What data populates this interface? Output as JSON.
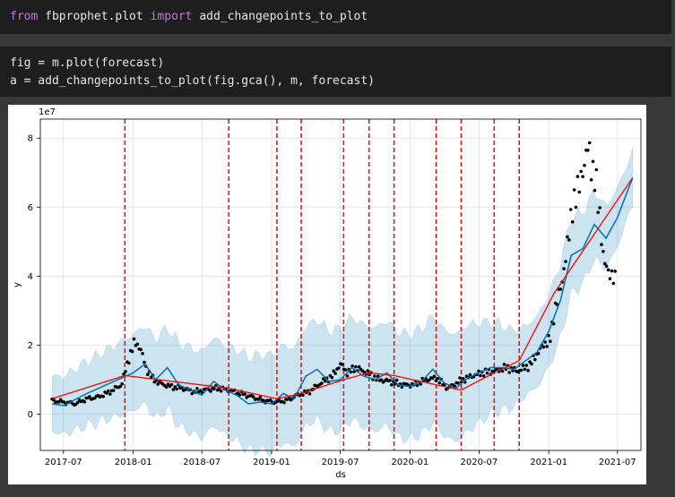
{
  "cells": [
    {
      "kw_from": "from",
      "module": " fbprophet.plot ",
      "kw_import": "import",
      "name": " add_changepoints_to_plot"
    },
    {
      "line1": "fig = m.plot(forecast)",
      "line2": "a = add_changepoints_to_plot(fig.gca(), m, forecast)"
    }
  ],
  "chart_data": {
    "type": "line",
    "title": "",
    "xlabel": "ds",
    "ylabel": "y",
    "y_offset_label": "1e7",
    "xlim": [
      "2017-05-01",
      "2021-09-01"
    ],
    "ylim": [
      -1.05,
      8.55
    ],
    "x_ticks": [
      "2017-07",
      "2018-01",
      "2018-07",
      "2019-01",
      "2019-07",
      "2020-01",
      "2020-07",
      "2021-01",
      "2021-07"
    ],
    "x_tick_positions": [
      "2017-07-01",
      "2018-01-01",
      "2018-07-01",
      "2019-01-01",
      "2019-07-01",
      "2020-01-01",
      "2020-07-01",
      "2021-01-01",
      "2021-07-01"
    ],
    "y_ticks": [
      0,
      2,
      4,
      6,
      8
    ],
    "colors": {
      "actual": "#000000",
      "forecast": "#0072B2",
      "interval": "#0072B2",
      "trend": "#ff0000",
      "changepoint": "#ff0000"
    },
    "changepoints": [
      "2017-12-10",
      "2018-09-10",
      "2019-01-15",
      "2019-03-20",
      "2019-07-10",
      "2019-09-15",
      "2019-11-20",
      "2020-03-10",
      "2020-05-15",
      "2020-08-10",
      "2020-10-15"
    ],
    "trend": [
      {
        "x": "2017-06-01",
        "y": 0.45
      },
      {
        "x": "2017-12-10",
        "y": 1.12
      },
      {
        "x": "2018-09-10",
        "y": 0.75
      },
      {
        "x": "2019-01-15",
        "y": 0.45
      },
      {
        "x": "2019-03-20",
        "y": 0.6
      },
      {
        "x": "2019-07-10",
        "y": 1.0
      },
      {
        "x": "2019-09-15",
        "y": 1.2
      },
      {
        "x": "2019-11-20",
        "y": 1.12
      },
      {
        "x": "2020-03-10",
        "y": 0.85
      },
      {
        "x": "2020-05-15",
        "y": 0.7
      },
      {
        "x": "2020-08-10",
        "y": 1.2
      },
      {
        "x": "2020-10-15",
        "y": 1.55
      },
      {
        "x": "2021-01-15",
        "y": 3.5
      },
      {
        "x": "2021-08-10",
        "y": 6.85
      }
    ],
    "forecast": [
      {
        "x": "2017-06-01",
        "y": 0.3
      },
      {
        "x": "2017-07-01",
        "y": 0.25
      },
      {
        "x": "2017-09-01",
        "y": 0.6
      },
      {
        "x": "2017-11-01",
        "y": 0.9
      },
      {
        "x": "2018-01-01",
        "y": 1.2
      },
      {
        "x": "2018-02-01",
        "y": 1.45
      },
      {
        "x": "2018-03-01",
        "y": 1.0
      },
      {
        "x": "2018-04-01",
        "y": 1.35
      },
      {
        "x": "2018-05-01",
        "y": 0.85
      },
      {
        "x": "2018-06-01",
        "y": 0.7
      },
      {
        "x": "2018-07-01",
        "y": 0.55
      },
      {
        "x": "2018-08-01",
        "y": 0.95
      },
      {
        "x": "2018-09-01",
        "y": 0.7
      },
      {
        "x": "2018-10-01",
        "y": 0.55
      },
      {
        "x": "2018-11-01",
        "y": 0.3
      },
      {
        "x": "2018-12-01",
        "y": 0.35
      },
      {
        "x": "2019-01-01",
        "y": 0.3
      },
      {
        "x": "2019-02-01",
        "y": 0.6
      },
      {
        "x": "2019-03-01",
        "y": 0.45
      },
      {
        "x": "2019-04-01",
        "y": 1.1
      },
      {
        "x": "2019-05-01",
        "y": 1.3
      },
      {
        "x": "2019-06-01",
        "y": 0.95
      },
      {
        "x": "2019-07-01",
        "y": 1.0
      },
      {
        "x": "2019-08-01",
        "y": 1.35
      },
      {
        "x": "2019-09-01",
        "y": 1.1
      },
      {
        "x": "2019-10-01",
        "y": 1.0
      },
      {
        "x": "2019-11-01",
        "y": 1.2
      },
      {
        "x": "2019-12-01",
        "y": 0.85
      },
      {
        "x": "2020-01-01",
        "y": 0.8
      },
      {
        "x": "2020-02-01",
        "y": 0.95
      },
      {
        "x": "2020-03-01",
        "y": 1.3
      },
      {
        "x": "2020-04-01",
        "y": 0.9
      },
      {
        "x": "2020-05-01",
        "y": 0.75
      },
      {
        "x": "2020-06-01",
        "y": 1.05
      },
      {
        "x": "2020-07-01",
        "y": 1.2
      },
      {
        "x": "2020-08-01",
        "y": 1.35
      },
      {
        "x": "2020-09-01",
        "y": 1.35
      },
      {
        "x": "2020-10-01",
        "y": 1.3
      },
      {
        "x": "2020-11-01",
        "y": 1.55
      },
      {
        "x": "2020-12-01",
        "y": 1.8
      },
      {
        "x": "2021-01-01",
        "y": 2.4
      },
      {
        "x": "2021-02-01",
        "y": 3.3
      },
      {
        "x": "2021-03-01",
        "y": 4.6
      },
      {
        "x": "2021-04-01",
        "y": 4.8
      },
      {
        "x": "2021-05-01",
        "y": 5.5
      },
      {
        "x": "2021-06-01",
        "y": 5.1
      },
      {
        "x": "2021-07-01",
        "y": 5.7
      },
      {
        "x": "2021-08-10",
        "y": 6.85
      }
    ],
    "interval_halfwidth": [
      {
        "x": "2017-06-01",
        "y": 0.8
      },
      {
        "x": "2018-01-01",
        "y": 1.1
      },
      {
        "x": "2019-01-01",
        "y": 1.4
      },
      {
        "x": "2019-10-01",
        "y": 1.5
      },
      {
        "x": "2020-06-01",
        "y": 1.55
      },
      {
        "x": "2020-11-01",
        "y": 1.0
      },
      {
        "x": "2021-03-01",
        "y": 1.1
      },
      {
        "x": "2021-08-10",
        "y": 0.75
      }
    ],
    "actual_anchors": [
      {
        "x": "2017-06-01",
        "y": 0.4
      },
      {
        "x": "2017-07-01",
        "y": 0.35
      },
      {
        "x": "2017-08-01",
        "y": 0.3
      },
      {
        "x": "2017-09-01",
        "y": 0.45
      },
      {
        "x": "2017-10-01",
        "y": 0.5
      },
      {
        "x": "2017-11-01",
        "y": 0.65
      },
      {
        "x": "2017-12-01",
        "y": 0.85
      },
      {
        "x": "2017-12-20",
        "y": 1.6
      },
      {
        "x": "2018-01-05",
        "y": 2.1
      },
      {
        "x": "2018-01-20",
        "y": 1.9
      },
      {
        "x": "2018-02-05",
        "y": 1.3
      },
      {
        "x": "2018-02-20",
        "y": 1.05
      },
      {
        "x": "2018-03-10",
        "y": 0.9
      },
      {
        "x": "2018-04-10",
        "y": 0.8
      },
      {
        "x": "2018-05-10",
        "y": 0.75
      },
      {
        "x": "2018-06-10",
        "y": 0.65
      },
      {
        "x": "2018-07-10",
        "y": 0.7
      },
      {
        "x": "2018-08-10",
        "y": 0.75
      },
      {
        "x": "2018-09-10",
        "y": 0.7
      },
      {
        "x": "2018-10-10",
        "y": 0.6
      },
      {
        "x": "2018-11-10",
        "y": 0.5
      },
      {
        "x": "2018-12-10",
        "y": 0.4
      },
      {
        "x": "2019-01-10",
        "y": 0.35
      },
      {
        "x": "2019-02-10",
        "y": 0.4
      },
      {
        "x": "2019-03-10",
        "y": 0.55
      },
      {
        "x": "2019-04-10",
        "y": 0.65
      },
      {
        "x": "2019-05-10",
        "y": 0.9
      },
      {
        "x": "2019-06-10",
        "y": 1.1
      },
      {
        "x": "2019-07-01",
        "y": 1.45
      },
      {
        "x": "2019-07-20",
        "y": 1.2
      },
      {
        "x": "2019-08-10",
        "y": 1.35
      },
      {
        "x": "2019-09-10",
        "y": 1.2
      },
      {
        "x": "2019-10-10",
        "y": 1.0
      },
      {
        "x": "2019-11-10",
        "y": 0.95
      },
      {
        "x": "2019-12-10",
        "y": 0.85
      },
      {
        "x": "2020-01-10",
        "y": 0.85
      },
      {
        "x": "2020-02-10",
        "y": 1.0
      },
      {
        "x": "2020-03-10",
        "y": 1.05
      },
      {
        "x": "2020-04-10",
        "y": 0.75
      },
      {
        "x": "2020-05-10",
        "y": 0.95
      },
      {
        "x": "2020-06-10",
        "y": 1.1
      },
      {
        "x": "2020-07-10",
        "y": 1.2
      },
      {
        "x": "2020-08-10",
        "y": 1.25
      },
      {
        "x": "2020-09-10",
        "y": 1.35
      },
      {
        "x": "2020-10-10",
        "y": 1.25
      },
      {
        "x": "2020-11-10",
        "y": 1.4
      },
      {
        "x": "2020-12-10",
        "y": 1.9
      },
      {
        "x": "2021-01-05",
        "y": 2.2
      },
      {
        "x": "2021-01-20",
        "y": 3.2
      },
      {
        "x": "2021-02-05",
        "y": 3.8
      },
      {
        "x": "2021-02-20",
        "y": 5.0
      },
      {
        "x": "2021-03-05",
        "y": 6.0
      },
      {
        "x": "2021-03-20",
        "y": 6.6
      },
      {
        "x": "2021-04-05",
        "y": 7.2
      },
      {
        "x": "2021-04-15",
        "y": 7.9
      },
      {
        "x": "2021-04-25",
        "y": 7.0
      },
      {
        "x": "2021-05-05",
        "y": 6.8
      },
      {
        "x": "2021-05-15",
        "y": 5.8
      },
      {
        "x": "2021-05-25",
        "y": 4.5
      },
      {
        "x": "2021-06-05",
        "y": 4.2
      },
      {
        "x": "2021-06-15",
        "y": 4.0
      },
      {
        "x": "2021-06-25",
        "y": 3.9
      }
    ]
  }
}
